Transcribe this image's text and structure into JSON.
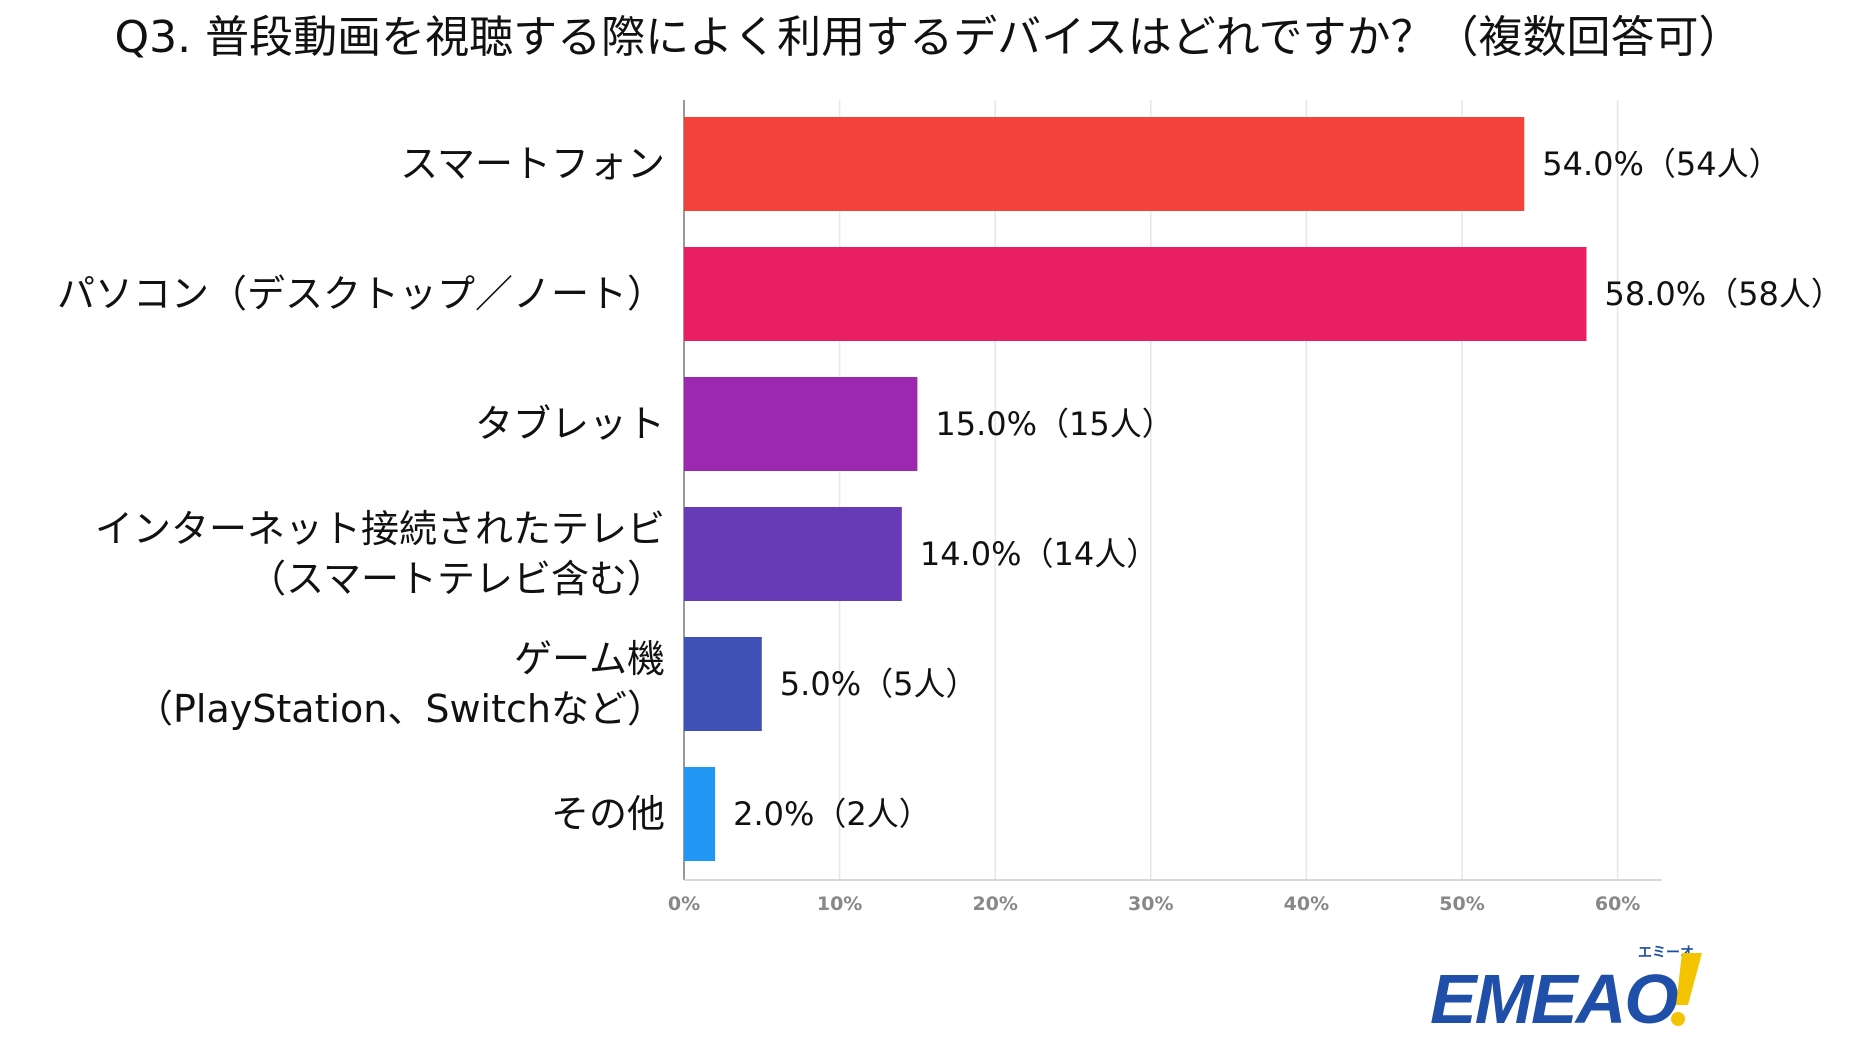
{
  "title": "Q3. 普段動画を視聴する際によく利用するデバイスはどれですか？（複数回答可）",
  "logo": {
    "text": "EMEAO!",
    "ruby": "エミーオ",
    "color": "#1f4fa8",
    "accent": "#f5c400"
  },
  "chart_data": {
    "type": "bar",
    "orientation": "horizontal",
    "title": "Q3. 普段動画を視聴する際によく利用するデバイスはどれですか？（複数回答可）",
    "categories": [
      [
        "スマートフォン"
      ],
      [
        "パソコン（デスクトップ／ノート）"
      ],
      [
        "タブレット"
      ],
      [
        "インターネット接続されたテレビ",
        "（スマートテレビ含む）"
      ],
      [
        "ゲーム機",
        "（PlayStation、Switchなど）"
      ],
      [
        "その他"
      ]
    ],
    "values": [
      54.0,
      58.0,
      15.0,
      14.0,
      5.0,
      2.0
    ],
    "data_labels": [
      "54.0%（54人）",
      "58.0%（58人）",
      "15.0%（15人）",
      "14.0%（14人）",
      "5.0%（5人）",
      "2.0%（2人）"
    ],
    "colors": [
      "#f4433a",
      "#e91e63",
      "#9c27b0",
      "#673ab7",
      "#3f51b5",
      "#2196f3"
    ],
    "xlim": [
      0,
      63
    ],
    "xticks": [
      0,
      10,
      20,
      30,
      40,
      50,
      60
    ],
    "xtick_labels": [
      "0%",
      "10%",
      "20%",
      "30%",
      "40%",
      "50%",
      "60%"
    ],
    "grid": true,
    "legend": "none"
  }
}
